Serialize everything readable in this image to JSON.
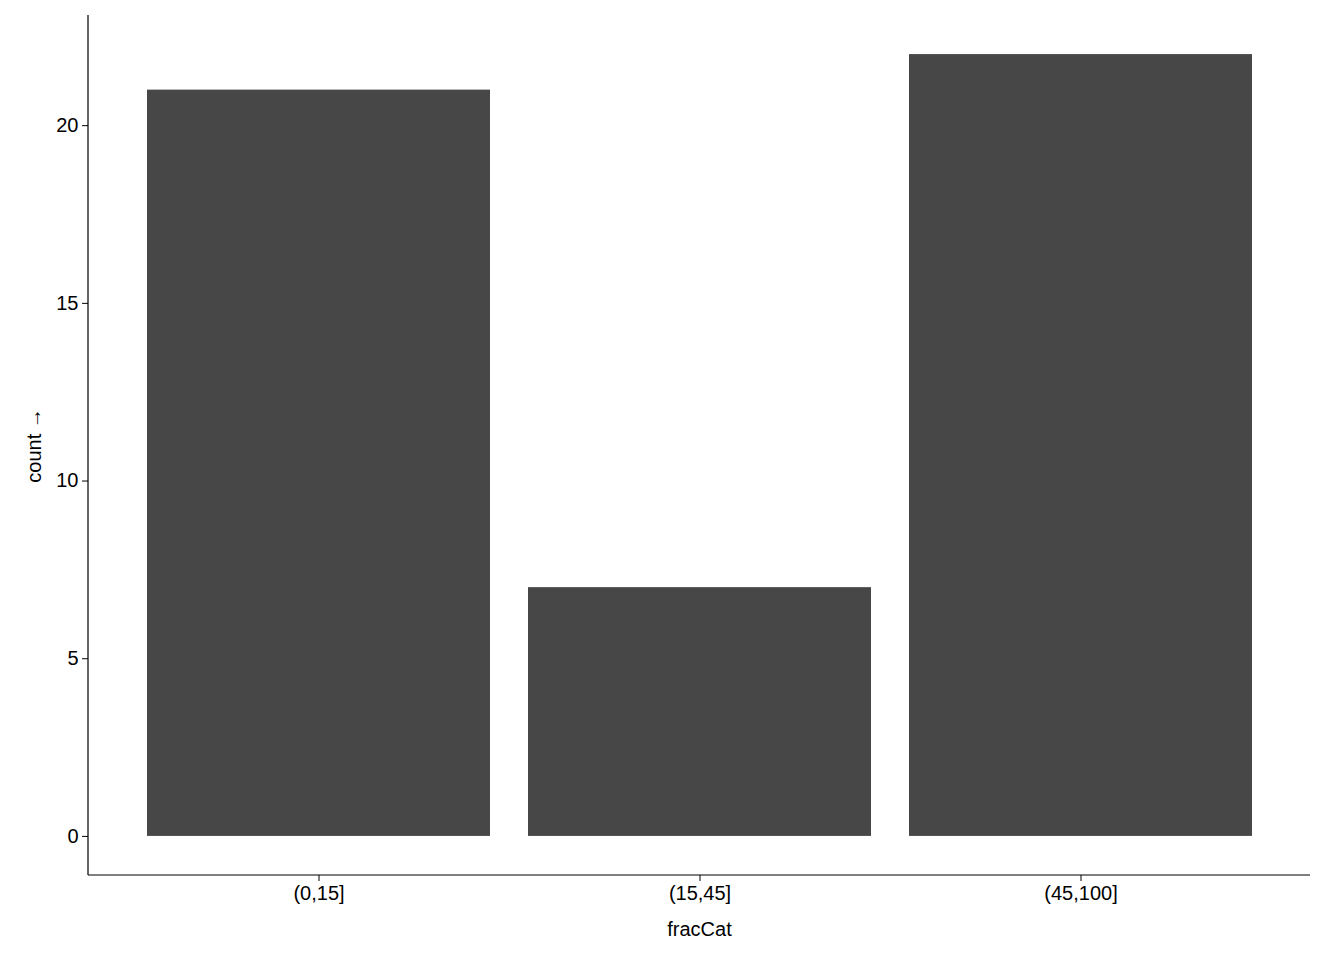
{
  "chart_data": {
    "type": "bar",
    "categories": [
      "(0,15]",
      "(15,45]",
      "(45,100]"
    ],
    "values": [
      21,
      7,
      22
    ],
    "color": "#474747",
    "x_label": "fracCat",
    "y_label": "count",
    "ylim": [
      -1.1,
      23.1
    ],
    "yticks": [
      0,
      5,
      10,
      15,
      20
    ],
    "grid": false
  }
}
